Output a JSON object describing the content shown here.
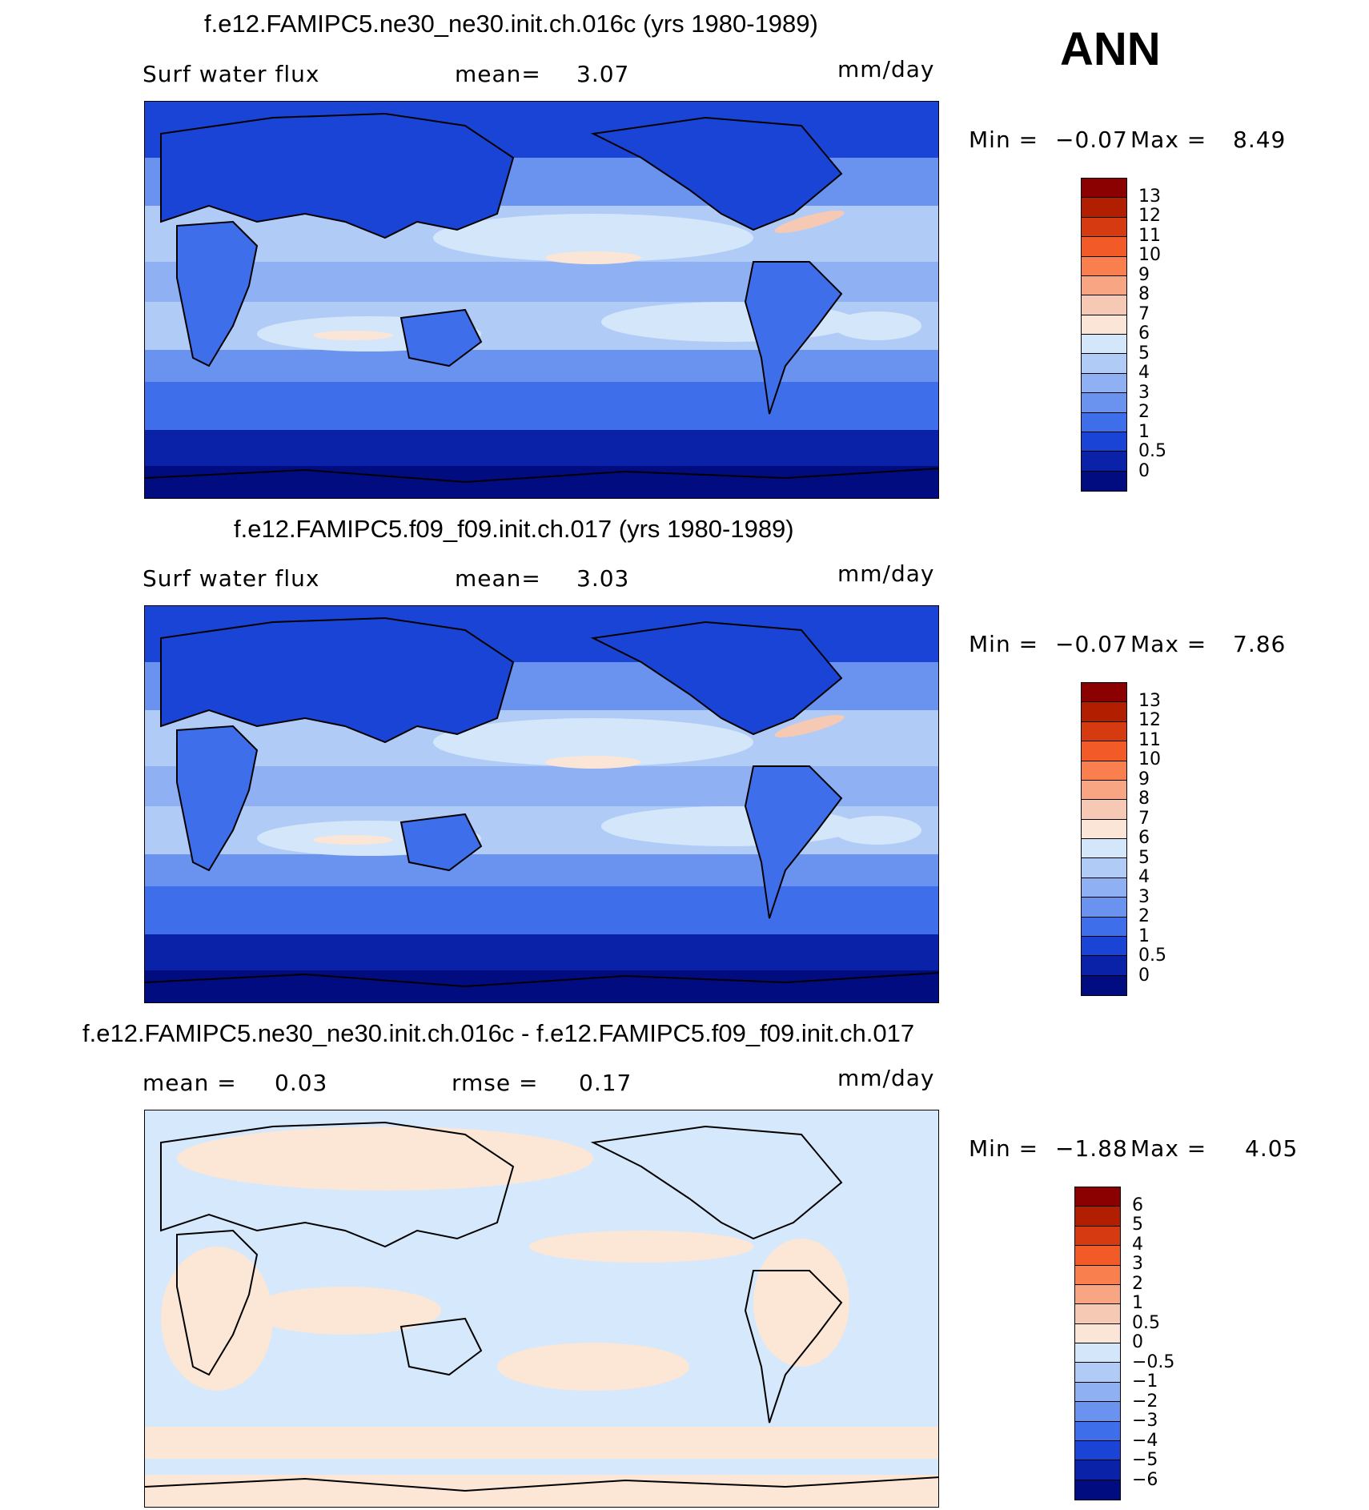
{
  "season": "ANN",
  "panels": [
    {
      "title": "f.e12.FAMIPC5.ne30_ne30.init.ch.016c (yrs 1980-1989)",
      "left_label": "Surf water flux",
      "stat1": "mean=",
      "stat1_value": "3.07",
      "stat2": "",
      "stat2_value": "",
      "units": "mm/day",
      "min_label": "Min =",
      "min_value": "−0.07",
      "max_label": "Max =",
      "max_value": "8.49",
      "colorbar": {
        "labels": [
          "13",
          "12",
          "11",
          "10",
          "9",
          "8",
          "7",
          "6",
          "5",
          "4",
          "3",
          "2",
          "1",
          "0.5",
          "0"
        ],
        "colors": [
          "#8b0000",
          "#b21e00",
          "#d63a10",
          "#f25a28",
          "#fa7f4f",
          "#f8a583",
          "#f6c9b4",
          "#fbe5d6",
          "#d3e6fa",
          "#b1cbf7",
          "#8fb0f3",
          "#6a93ef",
          "#3e6ee9",
          "#1a44d6",
          "#0a22a8",
          "#000c80"
        ]
      }
    },
    {
      "title": "f.e12.FAMIPC5.f09_f09.init.ch.017 (yrs 1980-1989)",
      "left_label": "Surf water flux",
      "stat1": "mean=",
      "stat1_value": "3.03",
      "stat2": "",
      "stat2_value": "",
      "units": "mm/day",
      "min_label": "Min =",
      "min_value": "−0.07",
      "max_label": "Max =",
      "max_value": "7.86",
      "colorbar": {
        "labels": [
          "13",
          "12",
          "11",
          "10",
          "9",
          "8",
          "7",
          "6",
          "5",
          "4",
          "3",
          "2",
          "1",
          "0.5",
          "0"
        ],
        "colors": [
          "#8b0000",
          "#b21e00",
          "#d63a10",
          "#f25a28",
          "#fa7f4f",
          "#f8a583",
          "#f6c9b4",
          "#fbe5d6",
          "#d3e6fa",
          "#b1cbf7",
          "#8fb0f3",
          "#6a93ef",
          "#3e6ee9",
          "#1a44d6",
          "#0a22a8",
          "#000c80"
        ]
      }
    },
    {
      "title": "f.e12.FAMIPC5.ne30_ne30.init.ch.016c - f.e12.FAMIPC5.f09_f09.init.ch.017",
      "left_label": "mean =",
      "stat1": "0.03",
      "stat1_value": "",
      "stat2": "rmse =",
      "stat2_value": "0.17",
      "units": "mm/day",
      "min_label": "Min =",
      "min_value": "−1.88",
      "max_label": "Max =",
      "max_value": "4.05",
      "colorbar": {
        "labels": [
          "6",
          "5",
          "4",
          "3",
          "2",
          "1",
          "0.5",
          "0",
          "−0.5",
          "−1",
          "−2",
          "−3",
          "−4",
          "−5",
          "−6"
        ],
        "colors": [
          "#8b0000",
          "#b21e00",
          "#d63a10",
          "#f25a28",
          "#fa7f4f",
          "#f8a583",
          "#f6c9b4",
          "#fbe5d6",
          "#d3e6fa",
          "#b1cbf7",
          "#8fb0f3",
          "#6a93ef",
          "#3e6ee9",
          "#1a44d6",
          "#0a22a8",
          "#000c80"
        ]
      }
    }
  ],
  "map_colors": {
    "deep": "#000c80",
    "dark": "#0a22a8",
    "mid": "#1a44d6",
    "blue": "#3e6ee9",
    "light": "#6a93ef",
    "lighter": "#8fb0f3",
    "pale": "#b1cbf7",
    "paler": "#d3e6fa",
    "cream": "#fbe5d6",
    "peach": "#f6c9b4",
    "diff_blue": "#d6e8fb",
    "diff_cream": "#fce6d6"
  }
}
